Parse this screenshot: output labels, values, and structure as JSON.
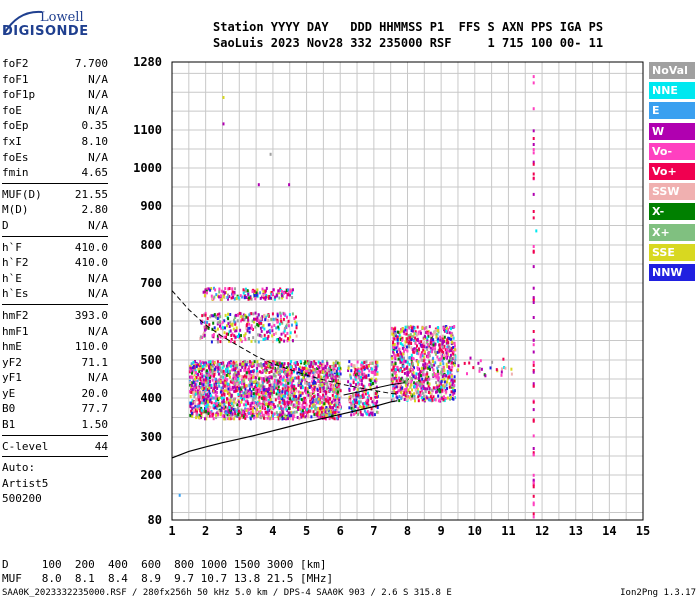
{
  "header": {
    "logo_top": "Lowell",
    "logo_bottom": "DIGISONDE",
    "line1": "Station YYYY DAY   DDD HHMMSS P1  FFS S AXN PPS IGA PS",
    "line2": "SaoLuis 2023 Nov28 332 235000 RSF     1 715 100 00- 11"
  },
  "params": [
    {
      "name": "foF2",
      "value": "7.700"
    },
    {
      "name": "foF1",
      "value": "N/A"
    },
    {
      "name": "foF1p",
      "value": "N/A"
    },
    {
      "name": "foE",
      "value": "N/A"
    },
    {
      "name": "foEp",
      "value": "0.35"
    },
    {
      "name": "fxI",
      "value": "8.10"
    },
    {
      "name": "foEs",
      "value": "N/A"
    },
    {
      "name": "fmin",
      "value": "4.65"
    },
    {
      "sep": true
    },
    {
      "name": "MUF(D)",
      "value": "21.55"
    },
    {
      "name": "M(D)",
      "value": "2.80"
    },
    {
      "name": "D",
      "value": "N/A"
    },
    {
      "sep": true
    },
    {
      "name": "h`F",
      "value": "410.0"
    },
    {
      "name": "h`F2",
      "value": "410.0"
    },
    {
      "name": "h`E",
      "value": "N/A"
    },
    {
      "name": "h`Es",
      "value": "N/A"
    },
    {
      "sep": true
    },
    {
      "name": "hmF2",
      "value": "393.0"
    },
    {
      "name": "hmF1",
      "value": "N/A"
    },
    {
      "name": "hmE",
      "value": "110.0"
    },
    {
      "name": "yF2",
      "value": "71.1"
    },
    {
      "name": "yF1",
      "value": "N/A"
    },
    {
      "name": "yE",
      "value": "20.0"
    },
    {
      "name": "B0",
      "value": "77.7"
    },
    {
      "name": "B1",
      "value": "1.50"
    },
    {
      "sep": true
    },
    {
      "name": "C-level",
      "value": "44"
    },
    {
      "sep": true
    },
    {
      "name": "Auto:",
      "value": ""
    },
    {
      "name": "Artist5",
      "value": ""
    },
    {
      "name": "500200",
      "value": ""
    }
  ],
  "legend": [
    {
      "label": "NoVal",
      "color": "#a0a0a0"
    },
    {
      "label": "NNE",
      "color": "#00e8f0"
    },
    {
      "label": "E",
      "color": "#3aa0f0"
    },
    {
      "label": "W",
      "color": "#b000b0"
    },
    {
      "label": "Vo-",
      "color": "#ff40c0"
    },
    {
      "label": "Vo+",
      "color": "#f00050"
    },
    {
      "label": "SSW",
      "color": "#f0b0b0"
    },
    {
      "label": "X-",
      "color": "#008000"
    },
    {
      "label": "X+",
      "color": "#80c080"
    },
    {
      "label": "SSE",
      "color": "#d8d820"
    },
    {
      "label": "NNW",
      "color": "#2020e0"
    }
  ],
  "footer": {
    "d_line": "D     100  200  400  600  800 1000 1500 3000 [km]",
    "muf_line": "MUF   8.0  8.1  8.4  8.9  9.7 10.7 13.8 21.5 [MHz]",
    "file_info": "SAA0K_2023332235000.RSF / 280fx256h 50 kHz 5.0 km / DPS-4 SAA0K 903 / 2.6 S 315.8 E",
    "version": "Ion2Png 1.3.17"
  },
  "chart_data": {
    "type": "scatter",
    "title": "",
    "xlabel": "",
    "ylabel": "",
    "xlim": [
      1,
      15
    ],
    "ylim": [
      80,
      1280
    ],
    "y_scale": "nonlinear (virtual height axis)",
    "grid": true,
    "x_ticks": [
      1,
      2,
      3,
      4,
      5,
      6,
      7,
      8,
      9,
      10,
      11,
      12,
      13,
      14,
      15
    ],
    "y_ticks": [
      80,
      200,
      300,
      400,
      500,
      600,
      700,
      800,
      900,
      1000,
      1100,
      1280
    ],
    "clusters": [
      {
        "f_range": [
          1.5,
          6.0
        ],
        "h_range": [
          350,
          500
        ],
        "density": 2200
      },
      {
        "f_range": [
          6.2,
          7.1
        ],
        "h_range": [
          360,
          500
        ],
        "density": 260
      },
      {
        "f_range": [
          7.5,
          9.4
        ],
        "h_range": [
          395,
          590
        ],
        "density": 900
      },
      {
        "f_range": [
          1.8,
          4.7
        ],
        "h_range": [
          550,
          625
        ],
        "density": 280
      },
      {
        "f_range": [
          1.9,
          4.6
        ],
        "h_range": [
          660,
          690
        ],
        "density": 170
      },
      {
        "f_range": [
          9.2,
          11.1
        ],
        "h_range": [
          460,
          510
        ],
        "density": 30
      }
    ],
    "column": {
      "f": 11.75,
      "h_range": [
        80,
        1280
      ],
      "count": 60
    },
    "sparse": [
      {
        "f": 2.5,
        "h": 1190,
        "c": 9
      },
      {
        "f": 2.5,
        "h": 1120,
        "c": 3
      },
      {
        "f": 3.55,
        "h": 960,
        "c": 3
      },
      {
        "f": 4.45,
        "h": 960,
        "c": 3
      },
      {
        "f": 3.9,
        "h": 1040,
        "c": 0
      },
      {
        "f": 1.2,
        "h": 150,
        "c": 2
      },
      {
        "f": 11.8,
        "h": 840,
        "c": 1
      }
    ],
    "profile_solid": [
      [
        1.0,
        245
      ],
      [
        1.5,
        262
      ],
      [
        2.0,
        274
      ],
      [
        2.5,
        285
      ],
      [
        3.0,
        295
      ],
      [
        3.5,
        305
      ],
      [
        4.0,
        316
      ],
      [
        4.5,
        327
      ],
      [
        5.0,
        338
      ],
      [
        5.5,
        348
      ],
      [
        6.0,
        358
      ],
      [
        6.5,
        368
      ],
      [
        7.0,
        378
      ],
      [
        7.5,
        390
      ],
      [
        7.7,
        393
      ]
    ],
    "profile_dashed": [
      [
        1.0,
        680
      ],
      [
        1.5,
        630
      ],
      [
        2.0,
        590
      ],
      [
        2.5,
        560
      ],
      [
        3.0,
        535
      ],
      [
        3.5,
        510
      ],
      [
        4.0,
        490
      ],
      [
        4.5,
        475
      ],
      [
        5.0,
        460
      ],
      [
        5.5,
        448
      ],
      [
        6.0,
        437
      ],
      [
        6.5,
        428
      ],
      [
        7.0,
        420
      ],
      [
        7.5,
        412
      ],
      [
        7.7,
        410
      ]
    ],
    "profile_extraordinary": [
      [
        6.1,
        408
      ],
      [
        6.5,
        415
      ],
      [
        7.0,
        425
      ],
      [
        7.5,
        435
      ],
      [
        7.9,
        440
      ]
    ]
  }
}
